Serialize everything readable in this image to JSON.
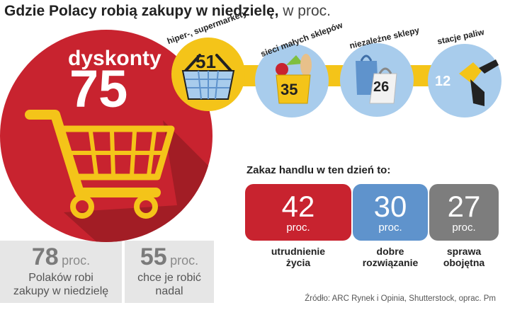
{
  "title": {
    "bold": "Gdzie Polacy robią zakupy w niedzielę,",
    "thin": " w proc."
  },
  "chart_data": [
    {
      "type": "bubble",
      "title": "Gdzie Polacy robią zakupy w niedzielę, w proc.",
      "categories": [
        "dyskonty",
        "hiper-, supermarkety",
        "sieci małych sklepów",
        "niezależne sklepy",
        "stacje paliw"
      ],
      "values": [
        75,
        51,
        35,
        26,
        12
      ],
      "unit": "proc."
    },
    {
      "type": "bar",
      "title": "Zakaz handlu w ten dzień to:",
      "categories": [
        "utrudnienie życia",
        "dobre rozwiązanie",
        "sprawa obojętna"
      ],
      "values": [
        42,
        30,
        27
      ],
      "unit": "proc."
    }
  ],
  "discount": {
    "label": "dyskonty",
    "value": "75"
  },
  "stores": [
    {
      "label": "hiper-, supermarkety",
      "value": "51"
    },
    {
      "label": "sieci małych sklepów",
      "value": "35"
    },
    {
      "label": "niezależne sklepy",
      "value": "26"
    },
    {
      "label": "stacje paliw",
      "value": "12"
    }
  ],
  "stats": [
    {
      "value": "78",
      "unit": "proc.",
      "line1": "Polaków robi",
      "line2": "zakupy w niedzielę"
    },
    {
      "value": "55",
      "unit": "proc.",
      "line1": "chce je robić",
      "line2": "nadal"
    }
  ],
  "ban": {
    "title": "Zakaz handlu w ten dzień to:",
    "items": [
      {
        "value": "42",
        "unit": "proc.",
        "line1": "utrudnienie",
        "line2": "życia"
      },
      {
        "value": "30",
        "unit": "proc.",
        "line1": "dobre",
        "line2": "rozwiązanie"
      },
      {
        "value": "27",
        "unit": "proc.",
        "line1": "sprawa",
        "line2": "obojętna"
      }
    ]
  },
  "source": "Źródło: ARC Rynek i Opinia, Shutterstock, oprac. Pm",
  "colors": {
    "red": "#c8232f",
    "dark_red": "#9b1c23",
    "yellow": "#f4c419",
    "light_blue": "#a8ccec",
    "blue": "#5f93cc",
    "gray": "#7d7d7d",
    "panel": "#e6e6e6"
  }
}
